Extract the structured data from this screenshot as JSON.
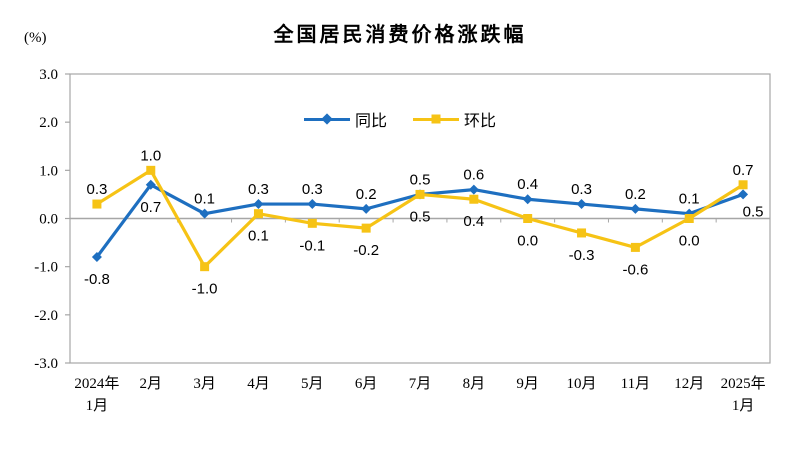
{
  "chart_data": {
    "type": "line",
    "title": "全国居民消费价格涨跌幅",
    "unit_label": "(%)",
    "categories": [
      "2024年1月",
      "2月",
      "3月",
      "4月",
      "5月",
      "6月",
      "7月",
      "8月",
      "9月",
      "10月",
      "11月",
      "12月",
      "2025年1月"
    ],
    "x_tick_labels": [
      [
        "2024年",
        "1月"
      ],
      [
        "2月"
      ],
      [
        "3月"
      ],
      [
        "4月"
      ],
      [
        "5月"
      ],
      [
        "6月"
      ],
      [
        "7月"
      ],
      [
        "8月"
      ],
      [
        "9月"
      ],
      [
        "10月"
      ],
      [
        "11月"
      ],
      [
        "12月"
      ],
      [
        "2025年",
        "1月"
      ]
    ],
    "series": [
      {
        "name": "同比",
        "marker": "diamond",
        "color": "#1E6FC0",
        "values": [
          -0.8,
          0.7,
          0.1,
          0.3,
          0.3,
          0.2,
          0.5,
          0.6,
          0.4,
          0.3,
          0.2,
          0.1,
          0.5
        ]
      },
      {
        "name": "环比",
        "marker": "square",
        "color": "#F6C315",
        "values": [
          0.3,
          1.0,
          -1.0,
          0.1,
          -0.1,
          -0.2,
          0.5,
          0.4,
          0.0,
          -0.3,
          -0.6,
          0.0,
          0.7
        ]
      }
    ],
    "ylim": [
      -3.0,
      3.0
    ],
    "y_tick_labels": [
      "3.0",
      "2.0",
      "1.0",
      "0.0",
      "-1.0",
      "-2.0",
      "-3.0"
    ],
    "xlabel": "",
    "ylabel": "(%)",
    "legend_position": "top-center",
    "grid": false,
    "data_labels_shown": true,
    "axis_color": "#A6A6A6",
    "text_color": "#000000",
    "background_color": "#FFFFFF"
  }
}
